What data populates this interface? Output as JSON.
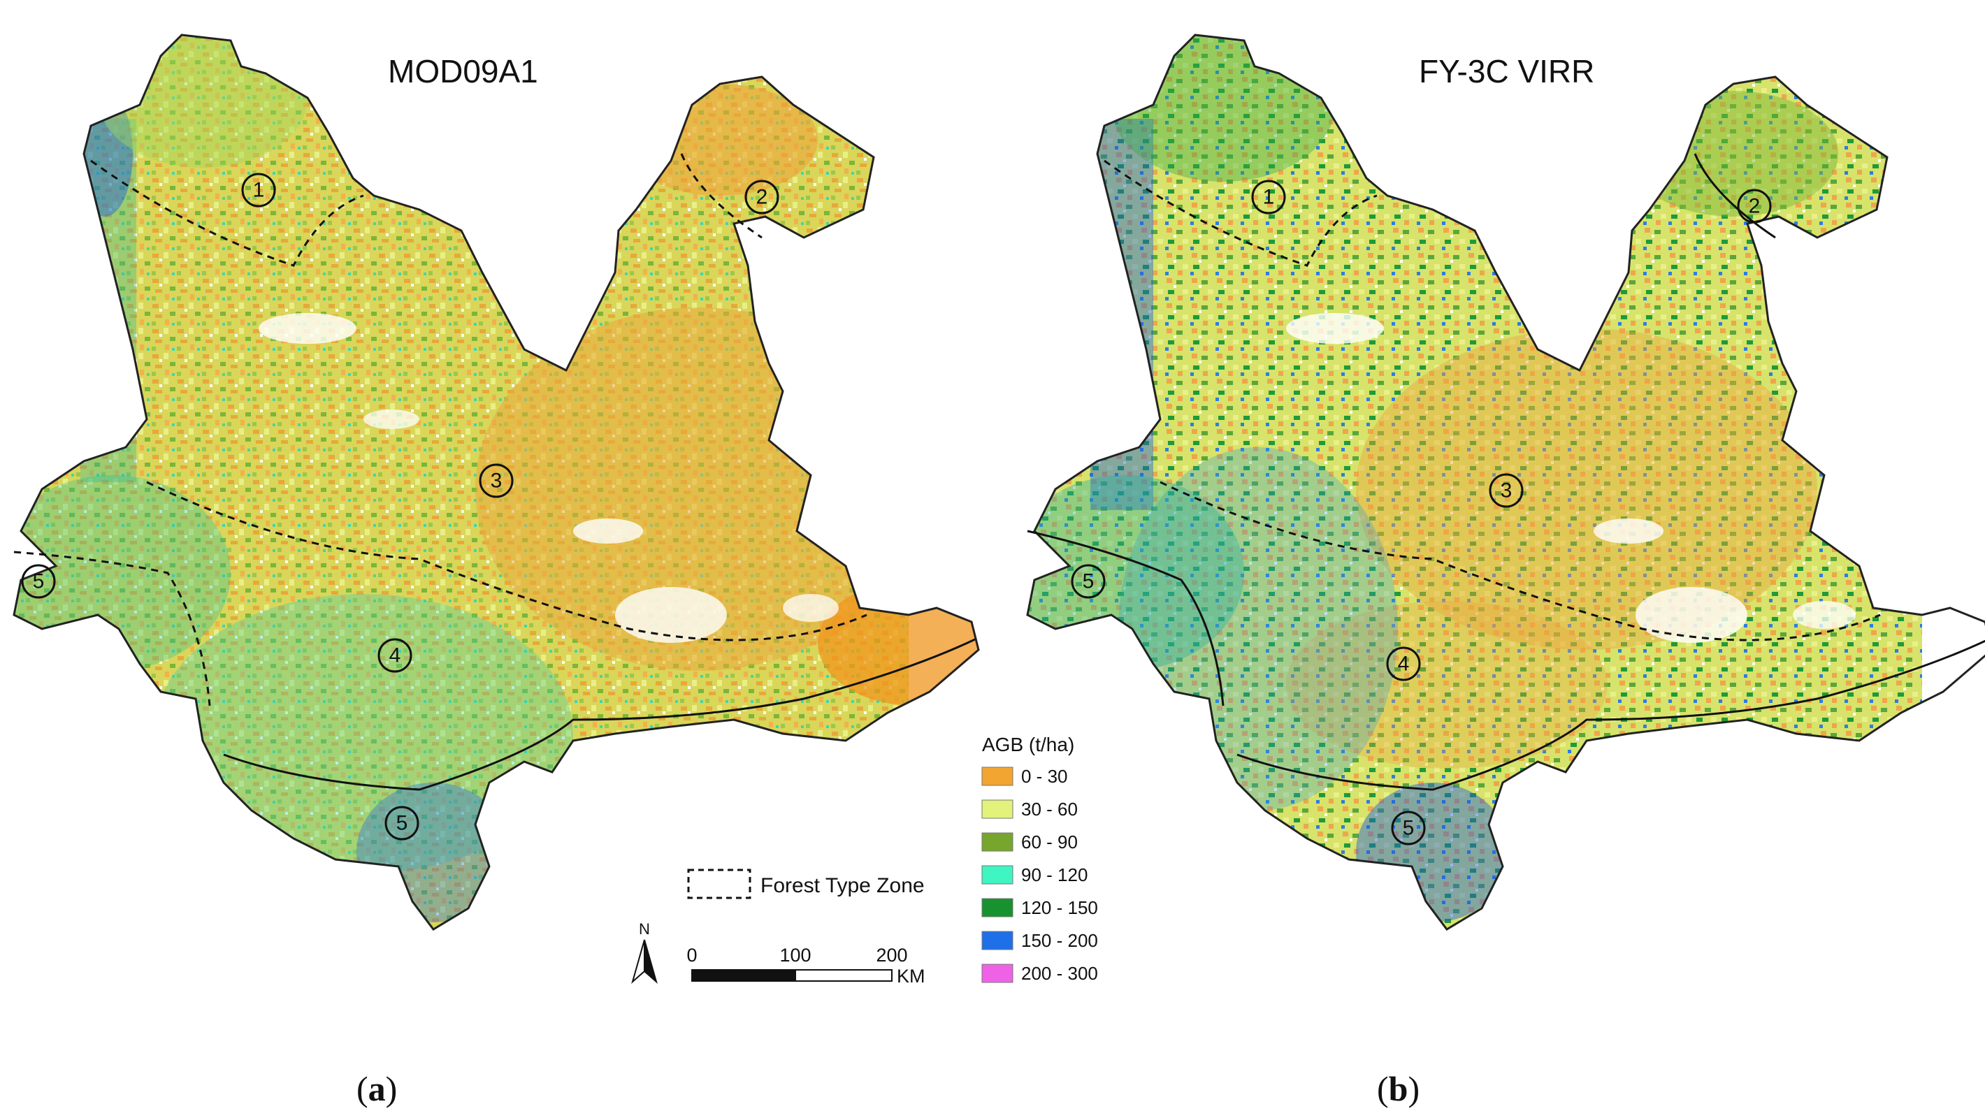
{
  "maps": [
    {
      "title": "MOD09A1",
      "caption_pre": "(",
      "caption_letter": "a",
      "caption_post": ")"
    },
    {
      "title": "FY-3C VIRR",
      "caption_pre": "(",
      "caption_letter": "b",
      "caption_post": ")"
    }
  ],
  "zones": [
    "1",
    "2",
    "3",
    "4",
    "5",
    "5"
  ],
  "legend": {
    "title": "AGB (t/ha)",
    "classes": [
      {
        "label": "0 - 30",
        "color": "#f2a531"
      },
      {
        "label": "30 - 60",
        "color": "#e2f27a"
      },
      {
        "label": "60 - 90",
        "color": "#76a62c"
      },
      {
        "label": "90 - 120",
        "color": "#3ff5c2"
      },
      {
        "label": "120 - 150",
        "color": "#17922e"
      },
      {
        "label": "150 - 200",
        "color": "#1f6fe8"
      },
      {
        "label": "200 - 300",
        "color": "#ef62e6"
      }
    ]
  },
  "zone_legend_label": "Forest Type Zone",
  "north_label": "N",
  "scale": {
    "ticks": [
      "0",
      "100",
      "200"
    ],
    "unit": "KM"
  }
}
